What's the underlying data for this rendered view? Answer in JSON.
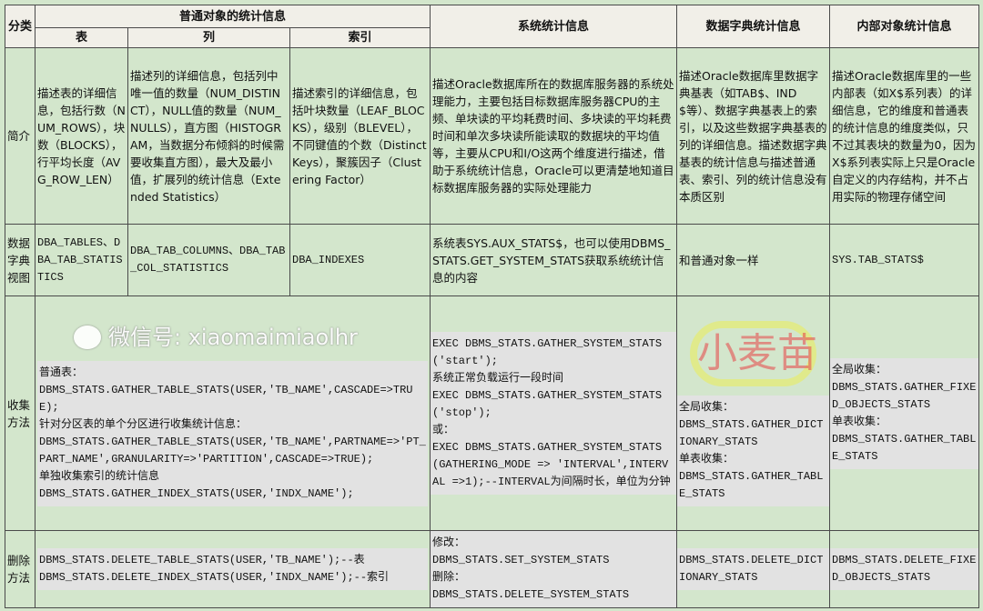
{
  "header": {
    "category": "分类",
    "normal_objects": "普通对象的统计信息",
    "table": "表",
    "column": "列",
    "index": "索引",
    "system": "系统统计信息",
    "dictionary": "数据字典统计信息",
    "internal": "内部对象统计信息"
  },
  "rows": {
    "intro": {
      "label": "简介",
      "table": "描述表的详细信息，包括行数（NUM_ROWS），块数（BLOCKS），行平均长度（AVG_ROW_LEN）",
      "column": "描述列的详细信息，包括列中唯一值的数量（NUM_DISTINCT），NULL值的数量（NUM_NULLS），直方图（HISTOGRAM，当数据分布倾斜的时候需要收集直方图），最大及最小值，扩展列的统计信息（Extended Statistics）",
      "index": "描述索引的详细信息，包括叶块数量（LEAF_BLOCKS），级别（BLEVEL），不同键值的个数（Distinct Keys），聚簇因子（Clustering Factor）",
      "system": "描述Oracle数据库所在的数据库服务器的系统处理能力，主要包括目标数据库服务器CPU的主频、单块读的平均耗费时间、多块读的平均耗费时间和单次多块读所能读取的数据块的平均值等，主要从CPU和I/O这两个维度进行描述，借助于系统统计信息，Oracle可以更清楚地知道目标数据库服务器的实际处理能力",
      "dictionary": "描述Oracle数据库里数据字典基表（如TAB$、IND$等）、数据字典基表上的索引，以及这些数据字典基表的列的详细信息。描述数据字典基表的统计信息与描述普通表、索引、列的统计信息没有本质区别",
      "internal": "描述Oracle数据库里的一些内部表（如X$系列表）的详细信息，它的维度和普通表的统计信息的维度类似，只不过其表块的数量为0，因为X$系列表实际上只是Oracle自定义的内存结构，并不占用实际的物理存储空间"
    },
    "views": {
      "label": "数据字典视图",
      "table": "DBA_TABLES、DBA_TAB_STATISTICS",
      "column": "DBA_TAB_COLUMNS、DBA_TAB_COL_STATISTICS",
      "index": "DBA_INDEXES",
      "system": "系统表SYS.AUX_STATS$，也可以使用DBMS_STATS.GET_SYSTEM_STATS获取系统统计信息的内容",
      "dictionary": "和普通对象一样",
      "internal": "SYS.TAB_STATS$"
    },
    "gather": {
      "label": "收集方法",
      "normal_lines": [
        "普通表：",
        "DBMS_STATS.GATHER_TABLE_STATS(USER,'TB_NAME',CASCADE=>TRUE);",
        "针对分区表的单个分区进行收集统计信息：",
        "DBMS_STATS.GATHER_TABLE_STATS(USER,'TB_NAME',PARTNAME=>'PT_PART_NAME',GRANULARITY=>'PARTITION',CASCADE=>TRUE);",
        "单独收集索引的统计信息",
        "DBMS_STATS.GATHER_INDEX_STATS(USER,'INDX_NAME');"
      ],
      "system_lines": [
        "EXEC DBMS_STATS.GATHER_SYSTEM_STATS('start');",
        "系统正常负载运行一段时间",
        "EXEC DBMS_STATS.GATHER_SYSTEM_STATS('stop');",
        "或：",
        "EXEC DBMS_STATS.GATHER_SYSTEM_STATS(GATHERING_MODE => 'INTERVAL',INTERVAL =>1);--INTERVAL为间隔时长，单位为分钟"
      ],
      "dictionary_lines": [
        "全局收集：",
        "DBMS_STATS.GATHER_DICTIONARY_STATS",
        "单表收集：",
        "DBMS_STATS.GATHER_TABLE_STATS"
      ],
      "internal_lines": [
        "全局收集：",
        "DBMS_STATS.GATHER_FIXED_OBJECTS_STATS",
        "单表收集：",
        "DBMS_STATS.GATHER_TABLE_STATS"
      ]
    },
    "delete": {
      "label": "删除方法",
      "normal_lines": [
        "DBMS_STATS.DELETE_TABLE_STATS(USER,'TB_NAME');--表",
        "DBMS_STATS.DELETE_INDEX_STATS(USER,'INDX_NAME');--索引"
      ],
      "system_lines": [
        "修改：",
        "DBMS_STATS.SET_SYSTEM_STATS",
        "删除：",
        "DBMS_STATS.DELETE_SYSTEM_STATS"
      ],
      "dictionary": "DBMS_STATS.DELETE_DICTIONARY_STATS",
      "internal": "DBMS_STATS.DELETE_FIXED_OBJECTS_STATS"
    }
  },
  "watermark": {
    "logo_text": "小麦苗",
    "wechat": "微信号: xiaomaimiaolhr"
  },
  "colors": {
    "cell_bg": "#d3e6cc",
    "header_bg": "#f1efe8",
    "code_shade": "#e2e2e2",
    "border": "#4a4a4a"
  }
}
